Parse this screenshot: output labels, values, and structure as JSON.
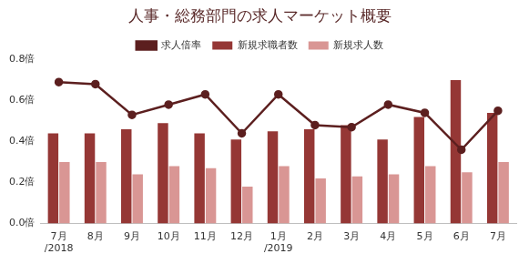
{
  "chart_data": {
    "type": "bar",
    "title": "人事・総務部門の求人マーケット概要",
    "categories": [
      [
        "7月",
        "/2018"
      ],
      [
        "8月"
      ],
      [
        "9月"
      ],
      [
        "10月"
      ],
      [
        "11月"
      ],
      [
        "12月"
      ],
      [
        "1月",
        "/2019"
      ],
      [
        "2月"
      ],
      [
        "3月"
      ],
      [
        "4月"
      ],
      [
        "5月"
      ],
      [
        "6月"
      ],
      [
        "7月"
      ]
    ],
    "series": [
      {
        "name": "新規求職者数",
        "type": "bar",
        "color": "#953735",
        "values": [
          0.44,
          0.44,
          0.46,
          0.49,
          0.44,
          0.41,
          0.45,
          0.46,
          0.48,
          0.41,
          0.52,
          0.7,
          0.54
        ]
      },
      {
        "name": "新規求人数",
        "type": "bar",
        "color": "#d99694",
        "values": [
          0.3,
          0.3,
          0.24,
          0.28,
          0.27,
          0.18,
          0.28,
          0.22,
          0.23,
          0.24,
          0.28,
          0.25,
          0.3
        ]
      },
      {
        "name": "求人倍率",
        "type": "line",
        "color": "#5c1f1f",
        "marker": "circle",
        "line_style": "solid",
        "values": [
          0.69,
          0.68,
          0.53,
          0.58,
          0.63,
          0.44,
          0.63,
          0.48,
          0.47,
          0.58,
          0.54,
          0.36,
          0.55
        ]
      }
    ],
    "ylim": [
      0,
      0.8
    ],
    "yticks": [
      {
        "value": 0,
        "label": "0.0倍"
      },
      {
        "value": 0.2,
        "label": "0.2倍"
      },
      {
        "value": 0.4,
        "label": "0.4倍"
      },
      {
        "value": 0.6,
        "label": "0.6倍"
      },
      {
        "value": 0.8,
        "label": "0.8倍"
      }
    ],
    "grid": false,
    "legend": "top"
  }
}
